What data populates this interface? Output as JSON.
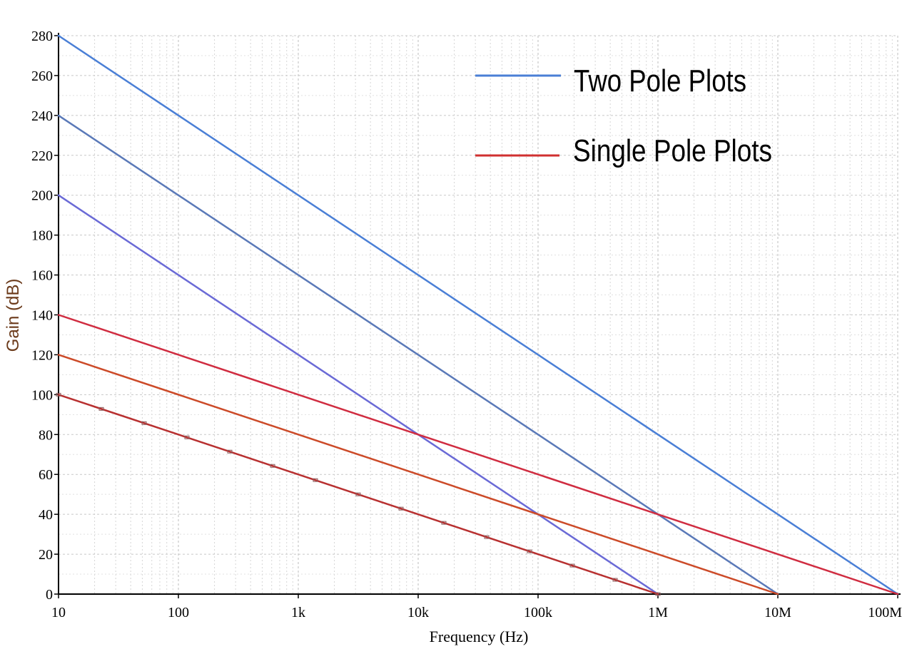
{
  "chart_data": {
    "type": "line",
    "xlabel": "Frequency (Hz)",
    "ylabel": "Gain (dB)",
    "x_scale": "log",
    "xlim": [
      10,
      100000000
    ],
    "ylim": [
      0,
      280
    ],
    "grid": true,
    "legend_position": "top-right",
    "x_ticks": [
      {
        "value": 10,
        "label": "10"
      },
      {
        "value": 100,
        "label": "100"
      },
      {
        "value": 1000,
        "label": "1k"
      },
      {
        "value": 10000,
        "label": "10k"
      },
      {
        "value": 100000,
        "label": "100k"
      },
      {
        "value": 1000000,
        "label": "1M"
      },
      {
        "value": 10000000,
        "label": "10M"
      },
      {
        "value": 100000000,
        "label": "100M"
      }
    ],
    "y_ticks": [
      0,
      20,
      40,
      60,
      80,
      100,
      120,
      140,
      160,
      180,
      200,
      220,
      240,
      260,
      280
    ],
    "legend": [
      {
        "label": "Two Pole Plots",
        "color": "#4a7fd6"
      },
      {
        "label": "Single Pole Plots",
        "color": "#d03030"
      }
    ],
    "series": [
      {
        "group": "Two Pole Plots",
        "color": "#4a7fd6",
        "x": [
          10,
          100000000
        ],
        "y": [
          280,
          0
        ]
      },
      {
        "group": "Two Pole Plots",
        "color": "#5a79b8",
        "x": [
          10,
          10000000
        ],
        "y": [
          240,
          0
        ]
      },
      {
        "group": "Two Pole Plots",
        "color": "#6a6ad6",
        "x": [
          10,
          1000000
        ],
        "y": [
          200,
          0
        ]
      },
      {
        "group": "Single Pole Plots",
        "color": "#d02c40",
        "x": [
          10,
          100000000
        ],
        "y": [
          140,
          0
        ]
      },
      {
        "group": "Single Pole Plots",
        "color": "#cc4a28",
        "x": [
          10,
          10000000
        ],
        "y": [
          120,
          0
        ]
      },
      {
        "group": "Single Pole Plots",
        "color": "#b83030",
        "x": [
          10,
          1000000
        ],
        "y": [
          100,
          0
        ]
      }
    ]
  }
}
